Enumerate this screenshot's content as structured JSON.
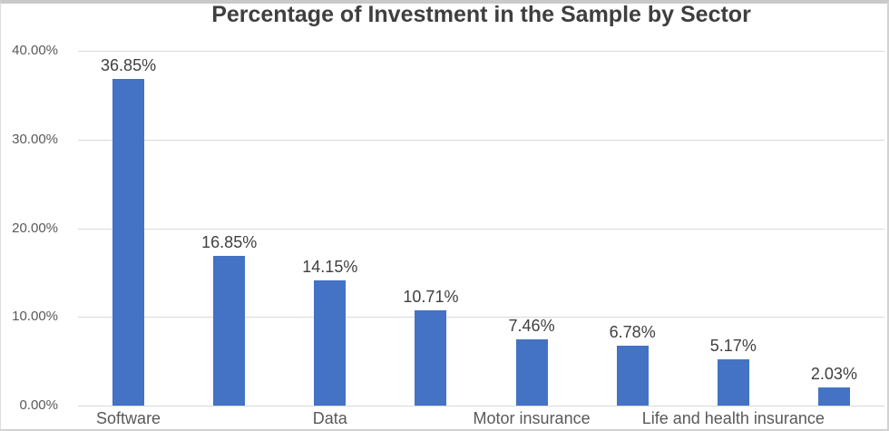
{
  "chart_data": {
    "type": "bar",
    "title": "Percentage of Investment in the Sample by Sector",
    "values": [
      36.85,
      16.85,
      14.15,
      10.71,
      7.46,
      6.78,
      5.17,
      2.03
    ],
    "data_labels": [
      "36.85%",
      "16.85%",
      "14.15%",
      "10.71%",
      "7.46%",
      "6.78%",
      "5.17%",
      "2.03%"
    ],
    "x_tick_labels": [
      {
        "bar_index": 0,
        "label": "Software"
      },
      {
        "bar_index": 2,
        "label": "Data"
      },
      {
        "bar_index": 4,
        "label": "Motor insurance"
      },
      {
        "bar_index": 6,
        "label": "Life and health insurance"
      }
    ],
    "y_tick_labels": [
      "40.00%",
      "30.00%",
      "20.00%",
      "10.00%",
      "0.00%"
    ],
    "ylim": [
      0,
      40
    ],
    "y_tick_step": 10,
    "grid": true,
    "legend": false,
    "bar_count": 8,
    "colors": {
      "bar": "#4472C4",
      "gridline": "#D9D9D9",
      "title_text": "#3F3F3F",
      "axis_text": "#595959",
      "data_label_text": "#404040",
      "border": "#C9C9C9",
      "background": "#FFFFFF"
    }
  }
}
